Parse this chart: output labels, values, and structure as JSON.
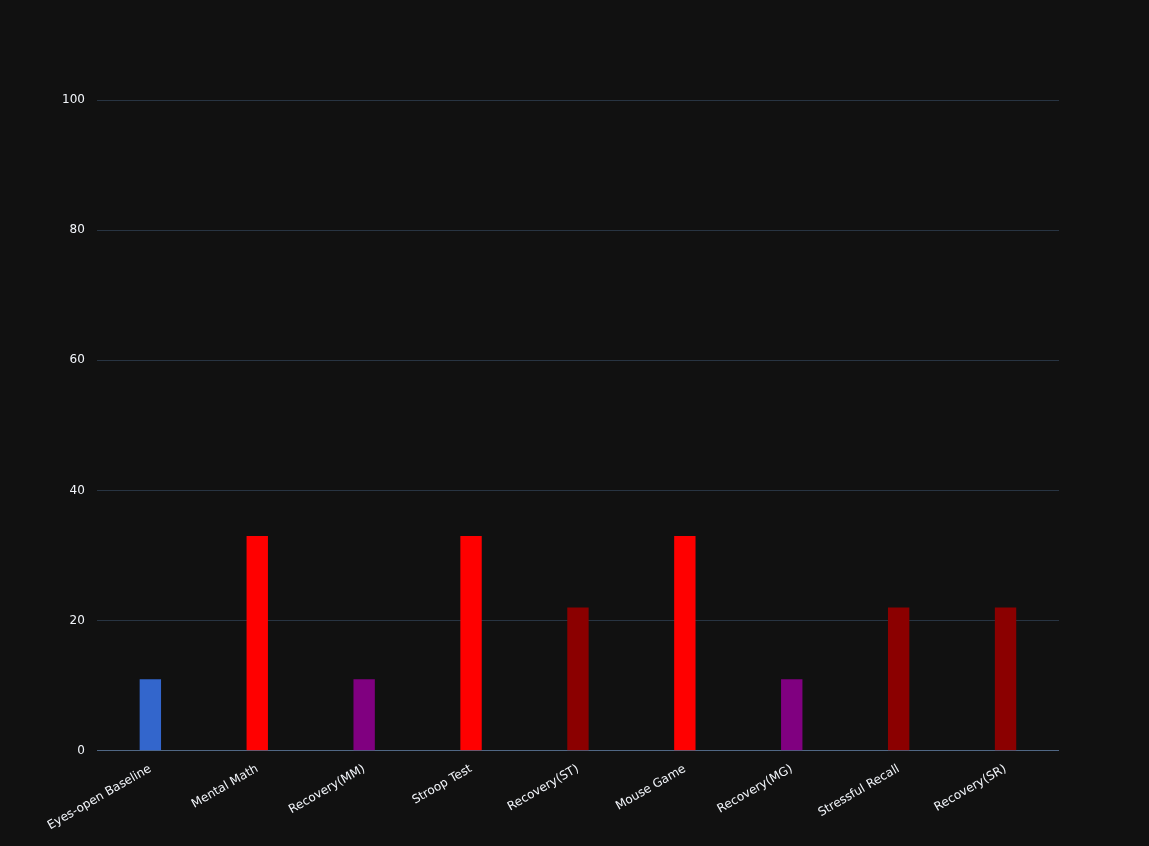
{
  "chart_data": {
    "type": "bar",
    "categories": [
      "Eyes-open Baseline",
      "Mental Math",
      "Recovery(MM)",
      "Stroop Test",
      "Recovery(ST)",
      "Mouse Game",
      "Recovery(MG)",
      "Stressful Recall",
      "Recovery(SR)"
    ],
    "values": [
      11,
      33,
      11,
      33,
      22,
      33,
      11,
      22,
      22
    ],
    "colors": [
      "#3366cc",
      "#ff0000",
      "#800080",
      "#ff0000",
      "#8b0000",
      "#ff0000",
      "#800080",
      "#8b0000",
      "#8b0000"
    ],
    "ylim": [
      0,
      100
    ],
    "yticks": [
      0,
      20,
      40,
      60,
      80,
      100
    ],
    "grid": "y",
    "legend": false
  }
}
